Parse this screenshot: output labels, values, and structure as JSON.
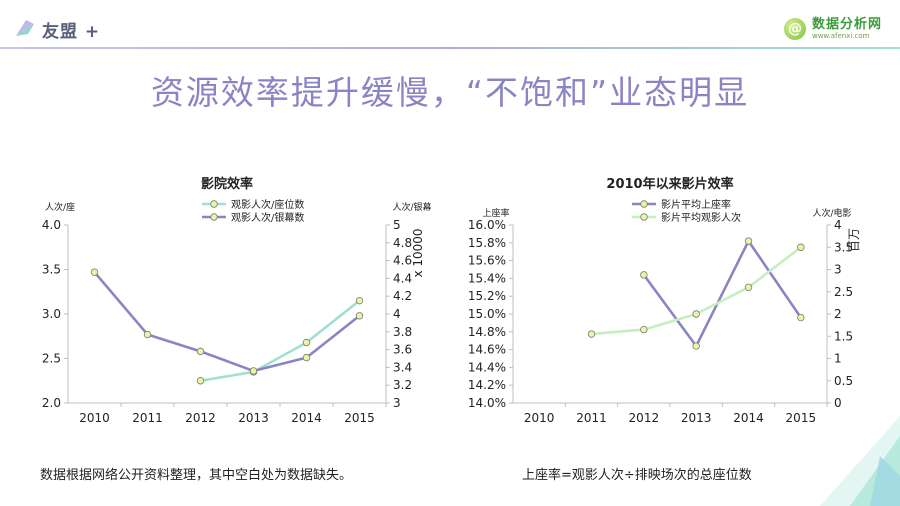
{
  "brand": {
    "logo_left": "友盟 +",
    "logo_right_cn": "数据分析网",
    "logo_right_en": "www.afenxi.com",
    "accent": "#8b84c4"
  },
  "headline": "资源效率提升缓慢，“不饱和”业态明显",
  "notes": [
    "数据根据网络公开资料整理，其中空白处为数据缺失。",
    "上座率=观影人次÷排映场次的总座位数"
  ],
  "chart_data": [
    {
      "type": "line",
      "title": "影院效率",
      "categories": [
        "2010",
        "2011",
        "2012",
        "2013",
        "2014",
        "2015"
      ],
      "y_left": {
        "label": "人次/座",
        "range": [
          2.0,
          4.0
        ],
        "ticks": [
          "2.0",
          "2.5",
          "3.0",
          "3.5",
          "4.0"
        ]
      },
      "y_right": {
        "label": "人次/银幕",
        "multiplier": "x 10000",
        "range": [
          3,
          5
        ],
        "ticks": [
          "3",
          "3.2",
          "3.4",
          "3.6",
          "3.8",
          "4",
          "4.2",
          "4.4",
          "4.6",
          "4.8",
          "5"
        ]
      },
      "legend_position": "top",
      "series": [
        {
          "name": "观影人次/座位数",
          "axis": "left",
          "color": "#9fe0d0",
          "values": [
            null,
            null,
            2.25,
            2.35,
            2.68,
            3.15
          ]
        },
        {
          "name": "观影人次/银幕数",
          "axis": "right",
          "color": "#8b84c4",
          "values": [
            4.47,
            3.77,
            3.58,
            3.36,
            3.51,
            3.98
          ]
        }
      ],
      "grid": false
    },
    {
      "type": "line",
      "title": "2010年以来影片效率",
      "categories": [
        "2010",
        "2011",
        "2012",
        "2013",
        "2014",
        "2015"
      ],
      "y_left": {
        "label": "上座率",
        "range": [
          14.0,
          16.0
        ],
        "ticks": [
          "14.0%",
          "14.2%",
          "14.4%",
          "14.6%",
          "14.8%",
          "15.0%",
          "15.2%",
          "15.4%",
          "15.6%",
          "15.8%",
          "16.0%"
        ]
      },
      "y_right": {
        "label": "人次/电影",
        "multiplier": "百万",
        "range": [
          0,
          4
        ],
        "ticks": [
          "0",
          "0.5",
          "1",
          "1.5",
          "2",
          "2.5",
          "3",
          "3.5",
          "4"
        ]
      },
      "legend_position": "top",
      "series": [
        {
          "name": "影片平均上座率",
          "axis": "left",
          "color": "#8b84c4",
          "values": [
            null,
            null,
            15.44,
            14.64,
            15.82,
            14.96
          ]
        },
        {
          "name": "影片平均观影人次",
          "axis": "right",
          "color": "#c6eec0",
          "values": [
            null,
            1.55,
            1.65,
            2.0,
            2.6,
            3.5
          ]
        }
      ],
      "grid": false
    }
  ]
}
